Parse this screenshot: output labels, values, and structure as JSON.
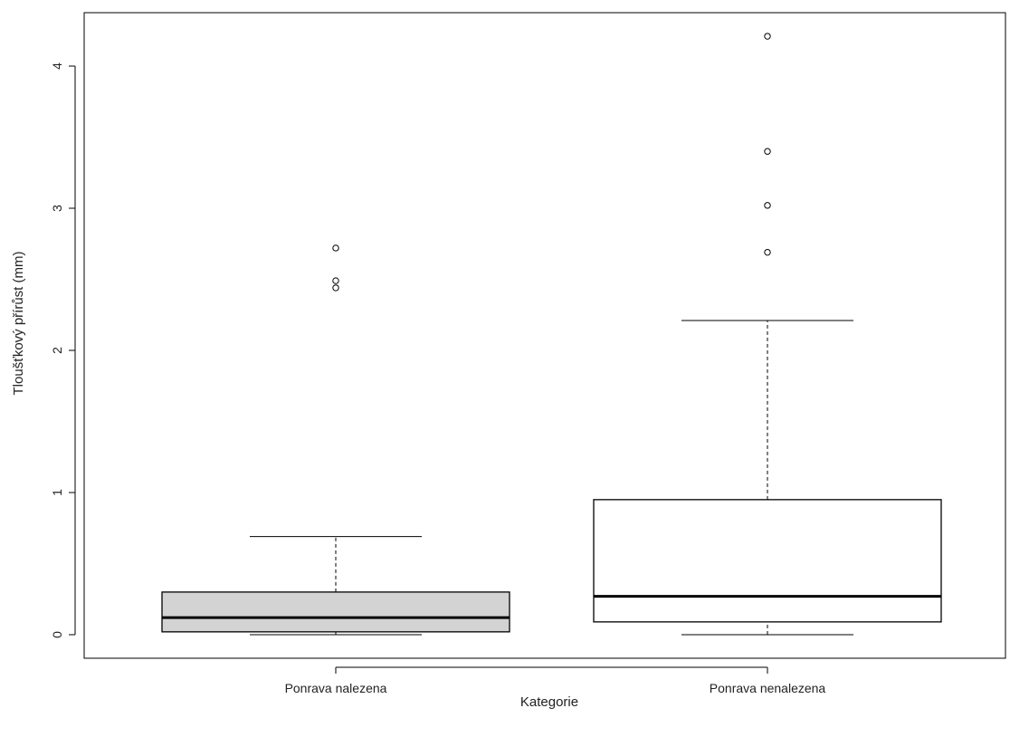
{
  "chart_data": {
    "type": "boxplot",
    "xlabel": "Kategorie",
    "ylabel": "Tloušťkový přírůst (mm)",
    "ylim": [
      0,
      4.2
    ],
    "y_ticks": [
      0,
      1,
      2,
      3,
      4
    ],
    "grid": false,
    "categories": [
      "Ponrava nalezena",
      "Ponrava nenalezena"
    ],
    "boxes": [
      {
        "name": "Ponrava nalezena",
        "fill": "#d3d3d3",
        "whisker_low": 0.0,
        "q1": 0.02,
        "median": 0.12,
        "q3": 0.3,
        "whisker_high": 0.69,
        "outliers": [
          2.44,
          2.49,
          2.72
        ]
      },
      {
        "name": "Ponrava nenalezena",
        "fill": "#ffffff",
        "whisker_low": 0.0,
        "q1": 0.09,
        "median": 0.27,
        "q3": 0.95,
        "whisker_high": 2.21,
        "outliers": [
          2.69,
          3.02,
          3.4,
          4.21
        ]
      }
    ]
  }
}
